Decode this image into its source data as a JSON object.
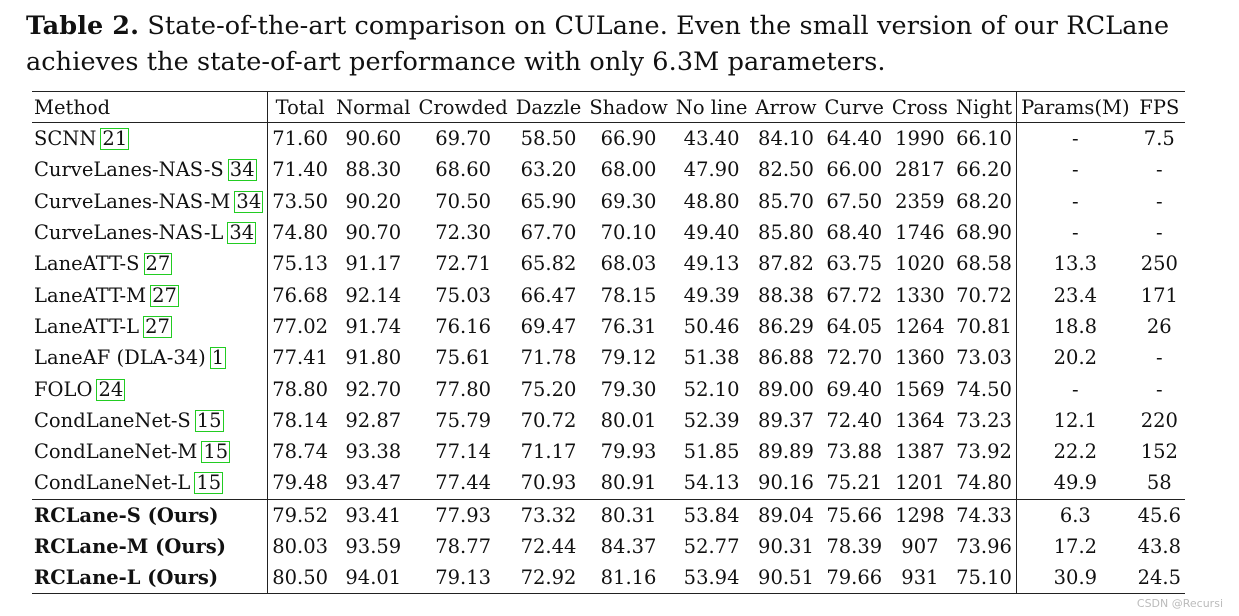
{
  "caption": {
    "label": "Table 2.",
    "text": "State-of-the-art comparison on CULane. Even the small version of our RCLane achieves the state-of-art performance with only 6.3M parameters."
  },
  "table": {
    "headers": [
      "Method",
      "Total",
      "Normal",
      "Crowded",
      "Dazzle",
      "Shadow",
      "No line",
      "Arrow",
      "Curve",
      "Cross",
      "Night",
      "Params(M)",
      "FPS"
    ],
    "rows": [
      {
        "name": "SCNN",
        "ref": "21",
        "values": [
          "71.60",
          "90.60",
          "69.70",
          "58.50",
          "66.90",
          "43.40",
          "84.10",
          "64.40",
          "1990",
          "66.10",
          "-",
          "7.5"
        ]
      },
      {
        "name": "CurveLanes-NAS-S",
        "ref": "34",
        "values": [
          "71.40",
          "88.30",
          "68.60",
          "63.20",
          "68.00",
          "47.90",
          "82.50",
          "66.00",
          "2817",
          "66.20",
          "-",
          "-"
        ]
      },
      {
        "name": "CurveLanes-NAS-M",
        "ref": "34",
        "values": [
          "73.50",
          "90.20",
          "70.50",
          "65.90",
          "69.30",
          "48.80",
          "85.70",
          "67.50",
          "2359",
          "68.20",
          "-",
          "-"
        ]
      },
      {
        "name": "CurveLanes-NAS-L",
        "ref": "34",
        "values": [
          "74.80",
          "90.70",
          "72.30",
          "67.70",
          "70.10",
          "49.40",
          "85.80",
          "68.40",
          "1746",
          "68.90",
          "-",
          "-"
        ]
      },
      {
        "name": "LaneATT-S",
        "ref": "27",
        "values": [
          "75.13",
          "91.17",
          "72.71",
          "65.82",
          "68.03",
          "49.13",
          "87.82",
          "63.75",
          "1020",
          "68.58",
          "13.3",
          "250"
        ]
      },
      {
        "name": "LaneATT-M",
        "ref": "27",
        "values": [
          "76.68",
          "92.14",
          "75.03",
          "66.47",
          "78.15",
          "49.39",
          "88.38",
          "67.72",
          "1330",
          "70.72",
          "23.4",
          "171"
        ]
      },
      {
        "name": "LaneATT-L",
        "ref": "27",
        "values": [
          "77.02",
          "91.74",
          "76.16",
          "69.47",
          "76.31",
          "50.46",
          "86.29",
          "64.05",
          "1264",
          "70.81",
          "18.8",
          "26"
        ]
      },
      {
        "name": "LaneAF (DLA-34)",
        "ref": "1",
        "values": [
          "77.41",
          "91.80",
          "75.61",
          "71.78",
          "79.12",
          "51.38",
          "86.88",
          "72.70",
          "1360",
          "73.03",
          "20.2",
          "-"
        ]
      },
      {
        "name": "FOLO",
        "ref": "24",
        "values": [
          "78.80",
          "92.70",
          "77.80",
          "75.20",
          "79.30",
          "52.10",
          "89.00",
          "69.40",
          "1569",
          "74.50",
          "-",
          "-"
        ]
      },
      {
        "name": "CondLaneNet-S",
        "ref": "15",
        "values": [
          "78.14",
          "92.87",
          "75.79",
          "70.72",
          "80.01",
          "52.39",
          "89.37",
          "72.40",
          "1364",
          "73.23",
          "12.1",
          "220"
        ]
      },
      {
        "name": "CondLaneNet-M",
        "ref": "15",
        "values": [
          "78.74",
          "93.38",
          "77.14",
          "71.17",
          "79.93",
          "51.85",
          "89.89",
          "73.88",
          "1387",
          "73.92",
          "22.2",
          "152"
        ]
      },
      {
        "name": "CondLaneNet-L",
        "ref": "15",
        "values": [
          "79.48",
          "93.47",
          "77.44",
          "70.93",
          "80.91",
          "54.13",
          "90.16",
          "75.21",
          "1201",
          "74.80",
          "49.9",
          "58"
        ]
      }
    ],
    "ours": [
      {
        "name": "RCLane-S (Ours)",
        "values": [
          "79.52",
          "93.41",
          "77.93",
          "73.32",
          "80.31",
          "53.84",
          "89.04",
          "75.66",
          "1298",
          "74.33",
          "6.3",
          "45.6"
        ]
      },
      {
        "name": "RCLane-M (Ours)",
        "values": [
          "80.03",
          "93.59",
          "78.77",
          "72.44",
          "84.37",
          "52.77",
          "90.31",
          "78.39",
          "907",
          "73.96",
          "17.2",
          "43.8"
        ]
      },
      {
        "name": "RCLane-L (Ours)",
        "values": [
          "80.50",
          "94.01",
          "79.13",
          "72.92",
          "81.16",
          "53.94",
          "90.51",
          "79.66",
          "931",
          "75.10",
          "30.9",
          "24.5"
        ]
      }
    ]
  },
  "watermark": "CSDN @Recursi"
}
